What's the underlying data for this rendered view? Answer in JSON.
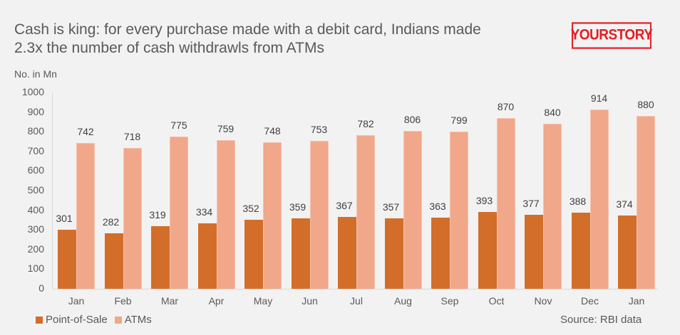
{
  "header": {
    "title_line1": "Cash is king:  for every purchase made with a debit card, Indians made",
    "title_line2": "2.3x the number  of cash withdrawls  from ATMs",
    "logo": "YOURSTORY",
    "unit_label": "No. in Mn"
  },
  "footer": {
    "source": "Source: RBI data"
  },
  "colors": {
    "point_of_sale": "#d26e2a",
    "atms": "#f1a78a",
    "logo": "#e31e24",
    "background": "#f2f2f2"
  },
  "chart_data": {
    "type": "bar",
    "title": "Cash is king: for every purchase made with a debit card, Indians made 2.3x the number of cash withdrawls from ATMs",
    "xlabel": "",
    "ylabel": "No. in Mn",
    "ylim": [
      0,
      1000
    ],
    "yticks": [
      0,
      100,
      200,
      300,
      400,
      500,
      600,
      700,
      800,
      900,
      1000
    ],
    "grid": false,
    "legend_position": "bottom-left",
    "categories": [
      "Jan",
      "Feb",
      "Mar",
      "Apr",
      "May",
      "Jun",
      "Jul",
      "Aug",
      "Sep",
      "Oct",
      "Nov",
      "Dec",
      "Jan"
    ],
    "series": [
      {
        "name": "Point-of-Sale",
        "color": "#d26e2a",
        "values": [
          301,
          282,
          319,
          334,
          352,
          359,
          367,
          357,
          363,
          393,
          377,
          388,
          374
        ]
      },
      {
        "name": "ATMs",
        "color": "#f1a78a",
        "values": [
          742,
          718,
          775,
          759,
          748,
          753,
          782,
          806,
          799,
          870,
          840,
          914,
          880
        ]
      }
    ],
    "source": "Source: RBI data"
  }
}
